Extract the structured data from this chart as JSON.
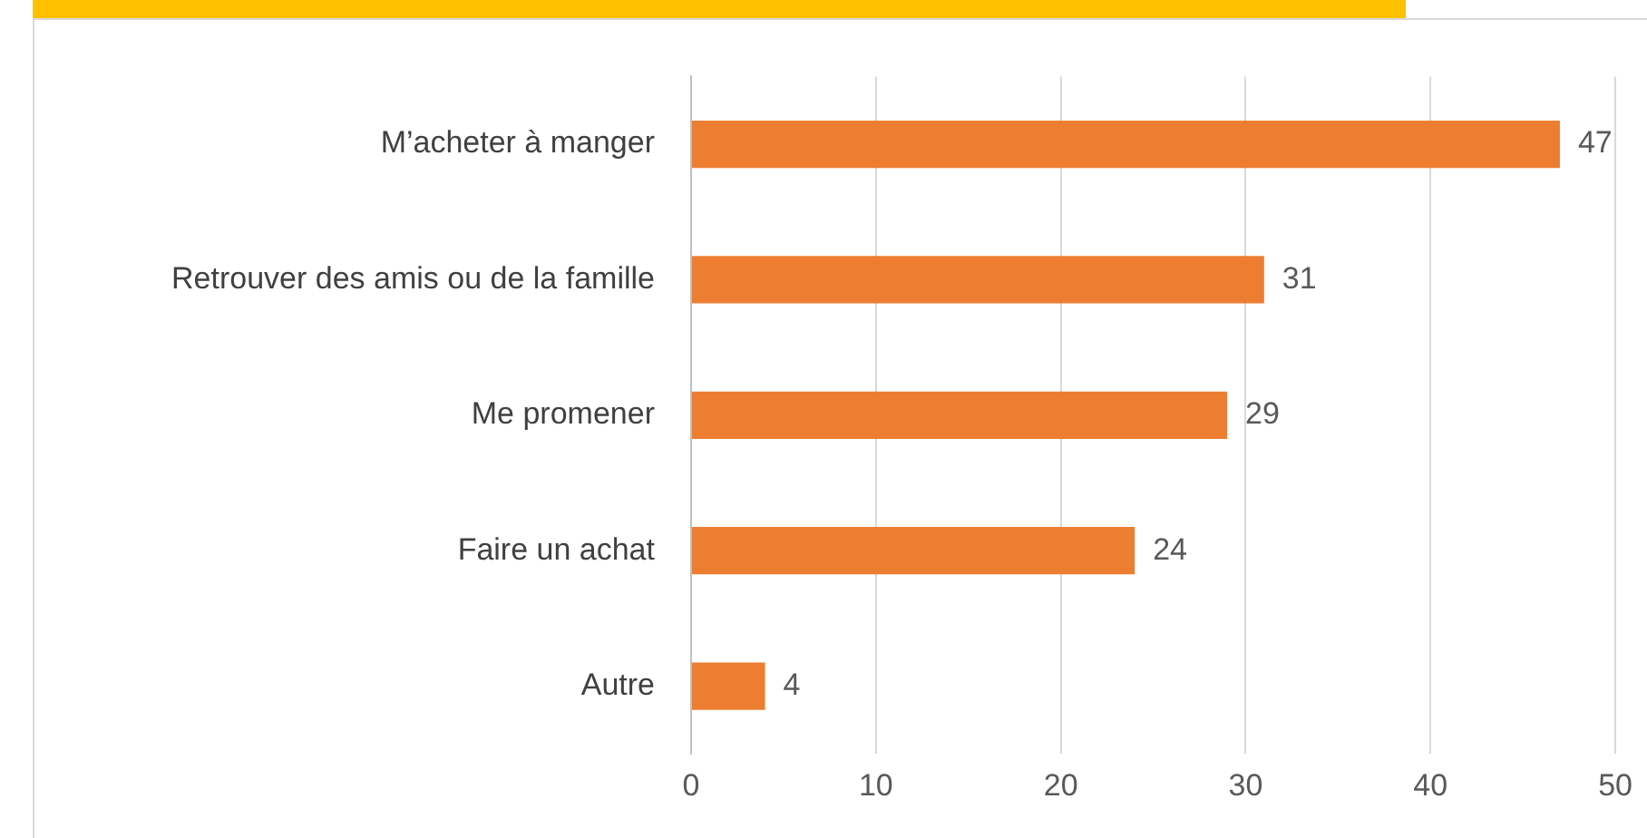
{
  "chart_data": {
    "type": "bar",
    "orientation": "horizontal",
    "categories": [
      "M’acheter à manger",
      "Retrouver des amis ou de la famille",
      "Me promener",
      "Faire un achat",
      "Autre"
    ],
    "values": [
      47,
      31,
      29,
      24,
      4
    ],
    "color": "#ed7d31",
    "xlim": [
      0,
      50
    ],
    "xticks": [
      0,
      10,
      20,
      30,
      40,
      50
    ],
    "grid": "x",
    "data_labels": true
  }
}
